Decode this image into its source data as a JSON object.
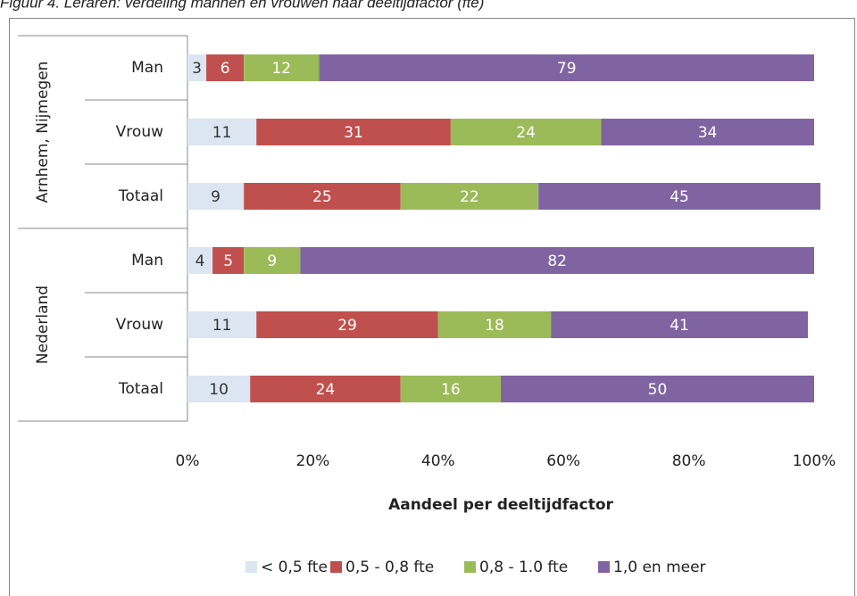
{
  "chart_data": {
    "type": "stacked_bar_horizontal",
    "title": "Figuur 4. Leraren: verdeling mannen en vrouwen naar deeltijdfactor (fte)",
    "x_label": "Aandeel per deeltijdfactor",
    "groups": [
      {
        "name": "Arnhem, Nijmegen",
        "categories": [
          "Man",
          "Vrouw",
          "Totaal"
        ]
      },
      {
        "name": "Nederland",
        "categories": [
          "Man",
          "Vrouw",
          "Totaal"
        ]
      }
    ],
    "series": [
      {
        "name": "< 0,5 fte",
        "color": "#dce6f2",
        "label_color": "#333333",
        "values": [
          3,
          11,
          9,
          4,
          11,
          10
        ]
      },
      {
        "name": "0,5 - 0,8 fte",
        "color": "#c0504d",
        "label_color": "#ffffff",
        "values": [
          6,
          31,
          25,
          5,
          29,
          24
        ]
      },
      {
        "name": "0,8 - 1.0 fte",
        "color": "#9bbb59",
        "label_color": "#ffffff",
        "values": [
          12,
          24,
          22,
          9,
          18,
          16
        ]
      },
      {
        "name": "1,0 en meer",
        "color": "#8064a2",
        "label_color": "#ffffff",
        "values": [
          79,
          34,
          45,
          82,
          41,
          50
        ]
      }
    ],
    "xlim": [
      0,
      100
    ],
    "xticks": [
      {
        "value": 0,
        "label": "0%"
      },
      {
        "value": 20,
        "label": "20%"
      },
      {
        "value": 40,
        "label": "40%"
      },
      {
        "value": 60,
        "label": "60%"
      },
      {
        "value": 80,
        "label": "80%"
      },
      {
        "value": 100,
        "label": "100%"
      }
    ],
    "legend": "bottom"
  }
}
